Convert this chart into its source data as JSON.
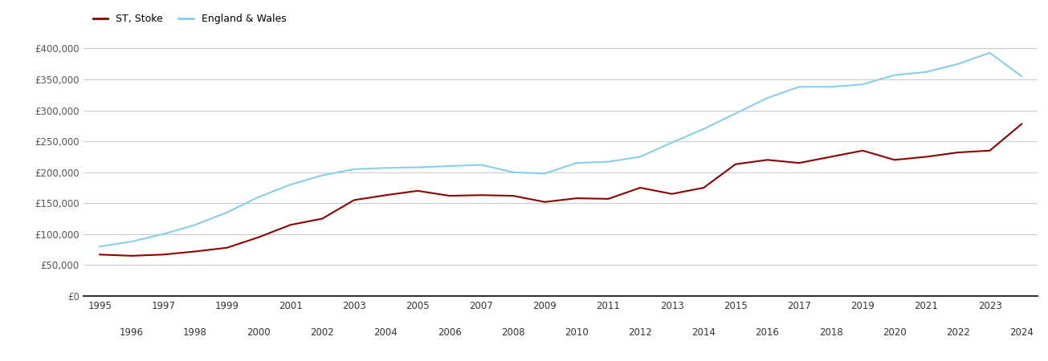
{
  "st_stoke_years": [
    1995,
    1996,
    1997,
    1998,
    1999,
    2000,
    2001,
    2002,
    2003,
    2004,
    2005,
    2006,
    2007,
    2008,
    2009,
    2010,
    2011,
    2012,
    2013,
    2014,
    2015,
    2016,
    2017,
    2018,
    2019,
    2020,
    2021,
    2022,
    2023,
    2024
  ],
  "st_stoke_values": [
    67000,
    65000,
    67000,
    72000,
    78000,
    95000,
    115000,
    125000,
    155000,
    163000,
    170000,
    162000,
    163000,
    162000,
    152000,
    158000,
    157000,
    175000,
    165000,
    175000,
    213000,
    220000,
    215000,
    225000,
    235000,
    220000,
    225000,
    232000,
    235000,
    278000
  ],
  "ew_years": [
    1995,
    1996,
    1997,
    1998,
    1999,
    2000,
    2001,
    2002,
    2003,
    2004,
    2005,
    2006,
    2007,
    2008,
    2009,
    2010,
    2011,
    2012,
    2013,
    2014,
    2015,
    2016,
    2017,
    2018,
    2019,
    2020,
    2021,
    2022,
    2023,
    2024
  ],
  "ew_values": [
    80000,
    88000,
    100000,
    115000,
    135000,
    160000,
    180000,
    195000,
    205000,
    207000,
    208000,
    210000,
    212000,
    200000,
    198000,
    215000,
    217000,
    225000,
    248000,
    270000,
    295000,
    320000,
    338000,
    338000,
    342000,
    357000,
    362000,
    375000,
    393000,
    355000
  ],
  "st_color": "#8B0000",
  "ew_color": "#87CEEB",
  "st_label": "ST, Stoke",
  "ew_label": "England & Wales",
  "ylim": [
    0,
    420000
  ],
  "yticks": [
    0,
    50000,
    100000,
    150000,
    200000,
    250000,
    300000,
    350000,
    400000
  ],
  "xlim": [
    1994.5,
    2024.5
  ],
  "bg_color": "#ffffff",
  "grid_color": "#cccccc",
  "line_width": 1.5
}
